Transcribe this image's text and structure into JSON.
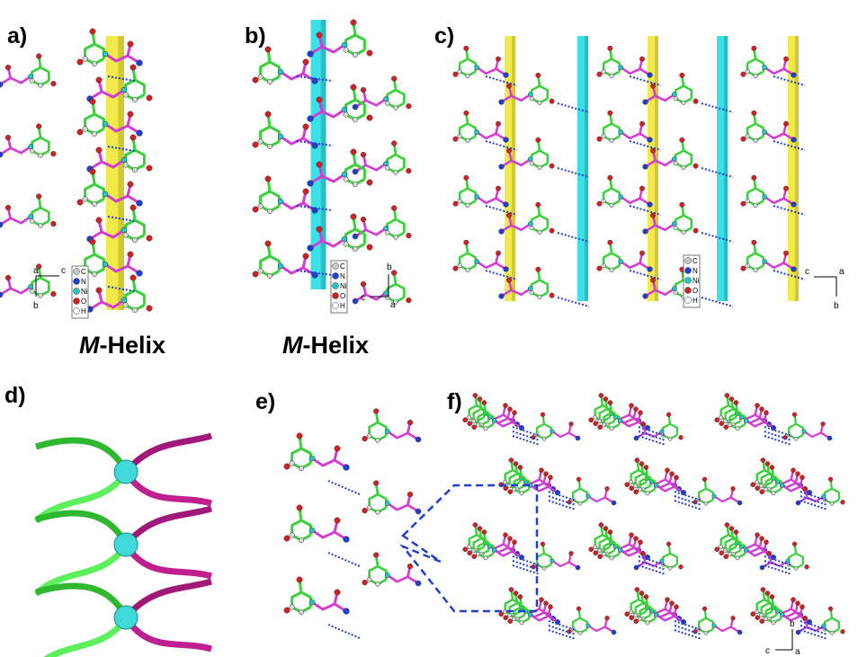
{
  "panels": [
    "a)",
    "b)",
    "c)",
    "d)",
    "e)",
    "f)"
  ],
  "captions": [
    {
      "emphasis": "M",
      "text": "-Helix"
    },
    {
      "emphasis": "M",
      "text": "-Helix"
    }
  ],
  "legend": {
    "atoms": [
      {
        "label": "C",
        "color": "#c8c8c8"
      },
      {
        "label": "N",
        "color": "#1f3fd0"
      },
      {
        "label": "Ni",
        "color": "#22c8c8"
      },
      {
        "label": "O",
        "color": "#d42020"
      },
      {
        "label": "H",
        "color": "#ffffff"
      }
    ]
  },
  "axes": {
    "a": [
      "a",
      "c",
      "b"
    ],
    "b": [
      "b",
      "c",
      "a"
    ],
    "c": [
      "c",
      "a",
      "b"
    ],
    "f": [
      "b",
      "c",
      "a"
    ]
  }
}
